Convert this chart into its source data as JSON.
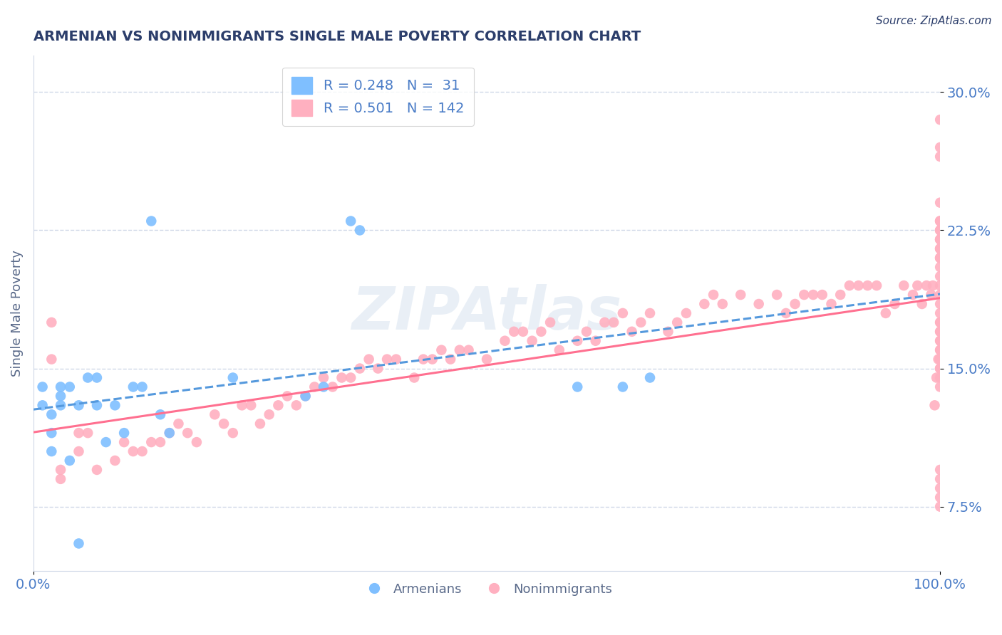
{
  "title": "ARMENIAN VS NONIMMIGRANTS SINGLE MALE POVERTY CORRELATION CHART",
  "source": "Source: ZipAtlas.com",
  "ylabel": "Single Male Poverty",
  "xlim": [
    0.0,
    1.0
  ],
  "ylim": [
    0.04,
    0.32
  ],
  "yticks": [
    0.075,
    0.15,
    0.225,
    0.3
  ],
  "ytick_labels": [
    "7.5%",
    "15.0%",
    "22.5%",
    "30.0%"
  ],
  "xtick_labels": [
    "0.0%",
    "100.0%"
  ],
  "armenian_color": "#7fbfff",
  "nonimmigrant_color": "#ffb0c0",
  "armenian_line_color": "#5599dd",
  "nonimmigrant_line_color": "#ff7090",
  "legend_r1": "R = 0.248",
  "legend_n1": "N =  31",
  "legend_r2": "R = 0.501",
  "legend_n2": "N = 142",
  "grid_color": "#d0d8e8",
  "background_color": "#ffffff",
  "watermark": "ZIPAtlas",
  "title_color": "#2c3e6b",
  "axis_label_color": "#5a6a8a",
  "tick_label_color": "#4a7cc7",
  "armenian_x": [
    0.01,
    0.01,
    0.02,
    0.02,
    0.02,
    0.03,
    0.03,
    0.03,
    0.04,
    0.04,
    0.05,
    0.05,
    0.06,
    0.07,
    0.07,
    0.08,
    0.09,
    0.1,
    0.11,
    0.12,
    0.13,
    0.14,
    0.15,
    0.22,
    0.3,
    0.32,
    0.35,
    0.36,
    0.6,
    0.65,
    0.68
  ],
  "armenian_y": [
    0.13,
    0.14,
    0.105,
    0.115,
    0.125,
    0.13,
    0.135,
    0.14,
    0.1,
    0.14,
    0.055,
    0.13,
    0.145,
    0.13,
    0.145,
    0.11,
    0.13,
    0.115,
    0.14,
    0.14,
    0.23,
    0.125,
    0.115,
    0.145,
    0.135,
    0.14,
    0.23,
    0.225,
    0.14,
    0.14,
    0.145
  ],
  "nonimmigrant_x": [
    0.02,
    0.02,
    0.03,
    0.03,
    0.05,
    0.05,
    0.06,
    0.07,
    0.09,
    0.1,
    0.11,
    0.12,
    0.13,
    0.14,
    0.15,
    0.16,
    0.17,
    0.18,
    0.2,
    0.21,
    0.22,
    0.23,
    0.24,
    0.25,
    0.26,
    0.27,
    0.28,
    0.29,
    0.3,
    0.31,
    0.32,
    0.33,
    0.34,
    0.35,
    0.36,
    0.37,
    0.38,
    0.39,
    0.4,
    0.42,
    0.43,
    0.44,
    0.45,
    0.46,
    0.47,
    0.48,
    0.5,
    0.52,
    0.53,
    0.54,
    0.55,
    0.56,
    0.57,
    0.58,
    0.6,
    0.61,
    0.62,
    0.63,
    0.64,
    0.65,
    0.66,
    0.67,
    0.68,
    0.7,
    0.71,
    0.72,
    0.74,
    0.75,
    0.76,
    0.78,
    0.8,
    0.82,
    0.83,
    0.84,
    0.85,
    0.86,
    0.87,
    0.88,
    0.89,
    0.9,
    0.91,
    0.92,
    0.93,
    0.94,
    0.95,
    0.96,
    0.97,
    0.975,
    0.98,
    0.985,
    0.99,
    0.992,
    0.994,
    0.996,
    0.998,
    1.0,
    1.0,
    1.0,
    1.0,
    1.0,
    1.0,
    1.0,
    1.0,
    1.0,
    1.0,
    1.0,
    1.0,
    1.0,
    1.0,
    1.0,
    1.0,
    1.0,
    1.0,
    1.0,
    1.0,
    1.0,
    1.0,
    1.0,
    1.0,
    1.0,
    1.0,
    1.0,
    1.0,
    1.0,
    1.0,
    1.0,
    1.0,
    1.0,
    1.0,
    1.0,
    1.0,
    1.0,
    1.0,
    1.0,
    1.0,
    1.0,
    1.0,
    1.0,
    1.0,
    1.0,
    1.0,
    1.0
  ],
  "nonimmigrant_y": [
    0.175,
    0.155,
    0.09,
    0.095,
    0.105,
    0.115,
    0.115,
    0.095,
    0.1,
    0.11,
    0.105,
    0.105,
    0.11,
    0.11,
    0.115,
    0.12,
    0.115,
    0.11,
    0.125,
    0.12,
    0.115,
    0.13,
    0.13,
    0.12,
    0.125,
    0.13,
    0.135,
    0.13,
    0.135,
    0.14,
    0.145,
    0.14,
    0.145,
    0.145,
    0.15,
    0.155,
    0.15,
    0.155,
    0.155,
    0.145,
    0.155,
    0.155,
    0.16,
    0.155,
    0.16,
    0.16,
    0.155,
    0.165,
    0.17,
    0.17,
    0.165,
    0.17,
    0.175,
    0.16,
    0.165,
    0.17,
    0.165,
    0.175,
    0.175,
    0.18,
    0.17,
    0.175,
    0.18,
    0.17,
    0.175,
    0.18,
    0.185,
    0.19,
    0.185,
    0.19,
    0.185,
    0.19,
    0.18,
    0.185,
    0.19,
    0.19,
    0.19,
    0.185,
    0.19,
    0.195,
    0.195,
    0.195,
    0.195,
    0.18,
    0.185,
    0.195,
    0.19,
    0.195,
    0.185,
    0.195,
    0.19,
    0.195,
    0.13,
    0.145,
    0.155,
    0.15,
    0.145,
    0.14,
    0.15,
    0.155,
    0.155,
    0.15,
    0.155,
    0.16,
    0.16,
    0.155,
    0.165,
    0.165,
    0.17,
    0.17,
    0.175,
    0.175,
    0.18,
    0.185,
    0.19,
    0.195,
    0.21,
    0.22,
    0.23,
    0.215,
    0.215,
    0.22,
    0.225,
    0.23,
    0.24,
    0.265,
    0.285,
    0.21,
    0.215,
    0.22,
    0.225,
    0.27,
    0.2,
    0.205,
    0.21,
    0.225,
    0.23,
    0.075,
    0.08,
    0.085,
    0.09,
    0.095
  ]
}
